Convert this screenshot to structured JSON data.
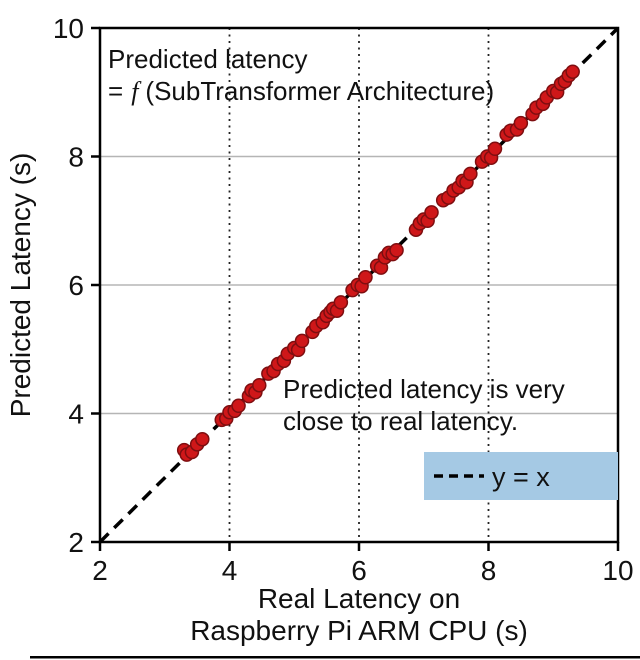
{
  "figure": {
    "background_color": "#ffffff"
  },
  "chart_data": {
    "type": "scatter",
    "title": "",
    "xlabel_line1": "Real Latency on",
    "xlabel_line2": "Raspberry Pi ARM CPU (s)",
    "ylabel": "Predicted Latency (s)",
    "xlim": [
      2,
      10
    ],
    "ylim": [
      2,
      10
    ],
    "xticks": [
      2,
      4,
      6,
      8,
      10
    ],
    "yticks": [
      2,
      4,
      6,
      8,
      10
    ],
    "grid_horizontal": [
      4,
      6,
      8
    ],
    "grid_vertical_dotted": [
      4,
      6,
      8
    ],
    "identity_line": {
      "from": [
        2,
        2
      ],
      "to": [
        10,
        10
      ],
      "style": "dashed",
      "color": "#000000"
    },
    "point_color": "#cf1719",
    "point_edge_color": "#7e0e10",
    "annotations": {
      "formula": {
        "line1": "Predicted latency",
        "line2_prefix": "=",
        "line2_f": "f",
        "line2_suffix": "(SubTransformer Architecture)"
      },
      "note": {
        "line1": "Predicted latency is very",
        "line2": "close to real latency."
      }
    },
    "legend": {
      "label": "y = x",
      "line_style": "dashed",
      "bg_color": "#a5c9e4",
      "position": "lower right"
    },
    "points": [
      [
        3.3,
        3.43
      ],
      [
        3.34,
        3.36
      ],
      [
        3.42,
        3.4
      ],
      [
        3.5,
        3.52
      ],
      [
        3.58,
        3.6
      ],
      [
        3.88,
        3.9
      ],
      [
        3.95,
        3.92
      ],
      [
        4.0,
        4.02
      ],
      [
        4.08,
        4.04
      ],
      [
        4.14,
        4.12
      ],
      [
        4.3,
        4.27
      ],
      [
        4.34,
        4.36
      ],
      [
        4.4,
        4.33
      ],
      [
        4.46,
        4.44
      ],
      [
        4.6,
        4.62
      ],
      [
        4.68,
        4.66
      ],
      [
        4.75,
        4.77
      ],
      [
        4.84,
        4.82
      ],
      [
        4.9,
        4.93
      ],
      [
        5.0,
        5.02
      ],
      [
        5.06,
        4.99
      ],
      [
        5.12,
        5.13
      ],
      [
        5.28,
        5.27
      ],
      [
        5.34,
        5.36
      ],
      [
        5.44,
        5.42
      ],
      [
        5.5,
        5.52
      ],
      [
        5.56,
        5.58
      ],
      [
        5.6,
        5.63
      ],
      [
        5.66,
        5.6
      ],
      [
        5.72,
        5.73
      ],
      [
        5.9,
        5.92
      ],
      [
        5.98,
        6.0
      ],
      [
        6.04,
        5.98
      ],
      [
        6.1,
        6.12
      ],
      [
        6.28,
        6.3
      ],
      [
        6.34,
        6.27
      ],
      [
        6.4,
        6.43
      ],
      [
        6.46,
        6.5
      ],
      [
        6.52,
        6.48
      ],
      [
        6.58,
        6.54
      ],
      [
        6.88,
        6.86
      ],
      [
        6.94,
        6.96
      ],
      [
        7.0,
        7.02
      ],
      [
        7.06,
        7.0
      ],
      [
        7.12,
        7.13
      ],
      [
        7.3,
        7.32
      ],
      [
        7.38,
        7.36
      ],
      [
        7.46,
        7.47
      ],
      [
        7.54,
        7.52
      ],
      [
        7.6,
        7.62
      ],
      [
        7.66,
        7.6
      ],
      [
        7.72,
        7.73
      ],
      [
        7.9,
        7.92
      ],
      [
        7.98,
        8.0
      ],
      [
        8.04,
        7.98
      ],
      [
        8.1,
        8.12
      ],
      [
        8.28,
        8.34
      ],
      [
        8.34,
        8.4
      ],
      [
        8.44,
        8.42
      ],
      [
        8.5,
        8.52
      ],
      [
        8.68,
        8.66
      ],
      [
        8.74,
        8.76
      ],
      [
        8.84,
        8.82
      ],
      [
        8.9,
        8.92
      ],
      [
        9.0,
        9.02
      ],
      [
        9.06,
        9.0
      ],
      [
        9.12,
        9.13
      ],
      [
        9.18,
        9.17
      ],
      [
        9.24,
        9.26
      ],
      [
        9.3,
        9.32
      ]
    ]
  }
}
